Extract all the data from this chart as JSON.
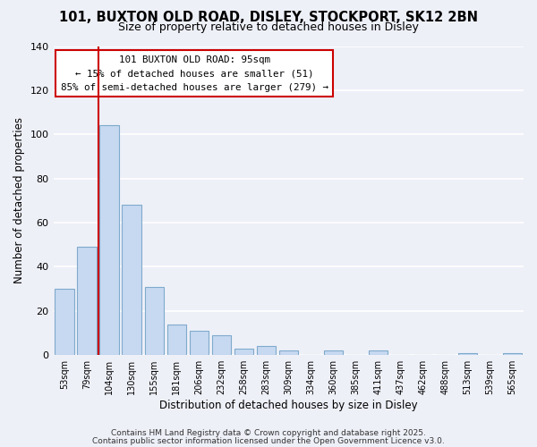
{
  "title": "101, BUXTON OLD ROAD, DISLEY, STOCKPORT, SK12 2BN",
  "subtitle": "Size of property relative to detached houses in Disley",
  "xlabel": "Distribution of detached houses by size in Disley",
  "ylabel": "Number of detached properties",
  "categories": [
    "53sqm",
    "79sqm",
    "104sqm",
    "130sqm",
    "155sqm",
    "181sqm",
    "206sqm",
    "232sqm",
    "258sqm",
    "283sqm",
    "309sqm",
    "334sqm",
    "360sqm",
    "385sqm",
    "411sqm",
    "437sqm",
    "462sqm",
    "488sqm",
    "513sqm",
    "539sqm",
    "565sqm"
  ],
  "values": [
    30,
    49,
    104,
    68,
    31,
    14,
    11,
    9,
    3,
    4,
    2,
    0,
    2,
    0,
    2,
    0,
    0,
    0,
    1,
    0,
    1
  ],
  "bar_color": "#c6d9f0",
  "bar_edge_color": "#7faacc",
  "marker_line_color": "#cc0000",
  "annotation_line1": "101 BUXTON OLD ROAD: 95sqm",
  "annotation_line2": "← 15% of detached houses are smaller (51)",
  "annotation_line3": "85% of semi-detached houses are larger (279) →",
  "annotation_box_color": "#ffffff",
  "annotation_box_edge": "#cc0000",
  "ylim": [
    0,
    140
  ],
  "yticks": [
    0,
    20,
    40,
    60,
    80,
    100,
    120,
    140
  ],
  "footer1": "Contains HM Land Registry data © Crown copyright and database right 2025.",
  "footer2": "Contains public sector information licensed under the Open Government Licence v3.0.",
  "bg_color": "#eef0f8",
  "grid_color": "#ffffff"
}
